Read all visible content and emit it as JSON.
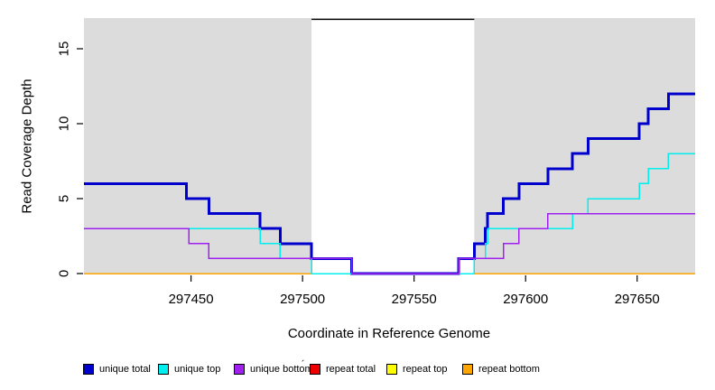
{
  "chart_data": {
    "type": "line",
    "subtype": "step-coverage-plot",
    "xlabel": "Coordinate in Reference Genome",
    "ylabel": "Read Coverage Depth",
    "xlim": [
      297402,
      297676
    ],
    "ylim": [
      0,
      17
    ],
    "x_ticks": [
      "297450",
      "297500",
      "297550",
      "297600",
      "297650"
    ],
    "y_ticks": [
      "0",
      "5",
      "10",
      "15"
    ],
    "grid": false,
    "panel_color": "#DCDCDC",
    "shaded_regions": [
      {
        "from": 297402,
        "to": 297504
      },
      {
        "from": 297577,
        "to": 297676
      }
    ],
    "gap_marker": {
      "from": 297504,
      "to": 297577,
      "depth": 17,
      "color": "#000000"
    },
    "series": [
      {
        "name": "repeat total",
        "color": "#EE0000",
        "line_width": 1.5,
        "initial": 0,
        "steps": []
      },
      {
        "name": "repeat top",
        "color": "#FFFF00",
        "line_width": 1.5,
        "initial": 0,
        "steps": []
      },
      {
        "name": "repeat bottom",
        "color": "#FFA500",
        "line_width": 1.5,
        "initial": 0,
        "steps": []
      },
      {
        "name": "unique total",
        "color": "#0000CD",
        "line_width": 3,
        "initial": 6,
        "steps": [
          [
            297448,
            5
          ],
          [
            297458,
            4
          ],
          [
            297481,
            3
          ],
          [
            297490,
            2
          ],
          [
            297504,
            1
          ],
          [
            297522,
            0
          ],
          [
            297570,
            1
          ],
          [
            297577,
            2
          ],
          [
            297582,
            3
          ],
          [
            297583,
            4
          ],
          [
            297590,
            5
          ],
          [
            297597,
            6
          ],
          [
            297610,
            7
          ],
          [
            297621,
            8
          ],
          [
            297628,
            9
          ],
          [
            297651,
            10
          ],
          [
            297655,
            11
          ],
          [
            297664,
            12
          ]
        ]
      },
      {
        "name": "unique top",
        "color": "#00EEEE",
        "line_width": 1.5,
        "initial": 3,
        "steps": [
          [
            297481,
            2
          ],
          [
            297490,
            1
          ],
          [
            297504,
            0
          ],
          [
            297577,
            1
          ],
          [
            297582,
            2
          ],
          [
            297583,
            3
          ],
          [
            297621,
            4
          ],
          [
            297628,
            5
          ],
          [
            297651,
            6
          ],
          [
            297655,
            7
          ],
          [
            297664,
            8
          ]
        ]
      },
      {
        "name": "unique bottom",
        "color": "#A020F0",
        "line_width": 1.5,
        "initial": 3,
        "steps": [
          [
            297449,
            2
          ],
          [
            297458,
            1
          ],
          [
            297522,
            0
          ],
          [
            297570,
            1
          ],
          [
            297590,
            2
          ],
          [
            297597,
            3
          ],
          [
            297610,
            4
          ]
        ]
      }
    ],
    "legend": {
      "position": "bottom",
      "entries": [
        {
          "label": "unique total",
          "color": "#0000CD"
        },
        {
          "label": "unique top",
          "color": "#00EEEE"
        },
        {
          "label": "unique bottom",
          "color": "#A020F0"
        },
        {
          "label": "repeat total",
          "color": "#EE0000"
        },
        {
          "label": "repeat top",
          "color": "#FFFF00"
        },
        {
          "label": "repeat bottom",
          "color": "#FFA500"
        }
      ],
      "artifact": "´"
    }
  }
}
